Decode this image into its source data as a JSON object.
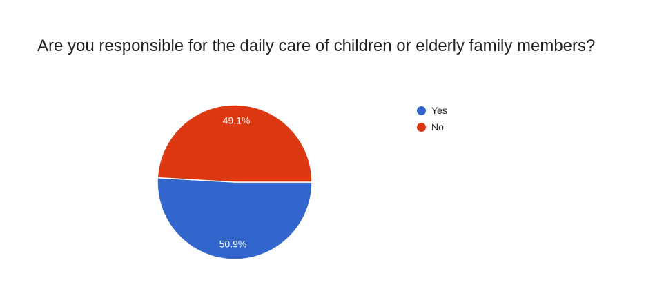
{
  "chart_data": {
    "type": "pie",
    "title": "Are you responsible for the daily care of children or elderly family members?",
    "categories": [
      "Yes",
      "No"
    ],
    "values": [
      50.9,
      49.1
    ],
    "data_labels": [
      "50.9%",
      "49.1%"
    ],
    "colors": [
      "#3366cc",
      "#dc3912"
    ],
    "legend_position": "right",
    "legend": [
      {
        "label": "Yes",
        "color": "#3366cc"
      },
      {
        "label": "No",
        "color": "#dc3912"
      }
    ]
  }
}
